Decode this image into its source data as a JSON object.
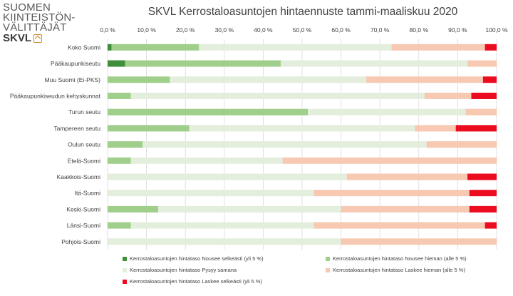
{
  "logo": {
    "line1": "SUOMEN",
    "line2": "KIINTEISTÖN-",
    "line3": "VÄLITTÄJÄT",
    "brand": "SKVL"
  },
  "colors": {
    "nousee_selkeasti": "#3f8f3a",
    "nousee_hieman": "#9fcf8a",
    "pysyy_samana": "#e4eedc",
    "laskee_hieman": "#f7c9b2",
    "laskee_selkeasti": "#ec0c20",
    "gridline": "#d9d9d9"
  },
  "chart_data": {
    "type": "bar",
    "orientation": "horizontal",
    "stacked": "percent",
    "title": "SKVL Kerrostaloasuntojen hintaennuste tammi-maaliskuu 2020",
    "xlim": [
      0,
      100
    ],
    "x_ticks": [
      "0,0 %",
      "10,0 %",
      "20,0 %",
      "30,0 %",
      "40,0 %",
      "50,0 %",
      "60,0 %",
      "70,0 %",
      "80,0 %",
      "90,0 %",
      "100,0 %"
    ],
    "x_tick_values": [
      0,
      10,
      20,
      30,
      40,
      50,
      60,
      70,
      80,
      90,
      100
    ],
    "grid": true,
    "legend_position": "bottom",
    "categories": [
      "Koko Suomi",
      "Pääkaupunkiseutu",
      "Muu Suomi (Ei-PKS)",
      "Pääkaupunkiseudun kehyskunnat",
      "Turun seutu",
      "Tampereen seutu",
      "Oulun seutu",
      "Etelä-Suomi",
      "Kaakkois-Suomi",
      "Itä-Suomi",
      "Keski-Suomi",
      "Länsi-Suomi",
      "Pohjois-Suomi"
    ],
    "series": [
      {
        "name": "Kerrostaloasuntojen hintataso Nousee selkeästi (yli 5 %)",
        "color_key": "nousee_selkeasti",
        "values": [
          1,
          4.5,
          0,
          0,
          0,
          0,
          0,
          0,
          0,
          0,
          0,
          0,
          0
        ]
      },
      {
        "name": "Kerrostaloasuntojen hintataso Nousee hieman (alle 5 %)",
        "color_key": "nousee_hieman",
        "values": [
          22.5,
          40,
          16,
          6,
          51.5,
          21,
          9,
          6,
          0,
          0,
          13,
          6,
          0
        ]
      },
      {
        "name": "Kerrostaloasuntojen hintataso Pysyy samana",
        "color_key": "pysyy_samana",
        "values": [
          49.5,
          48,
          50.5,
          75.5,
          40.5,
          58,
          73,
          39,
          61.5,
          53,
          47,
          47,
          60
        ]
      },
      {
        "name": "Kerrostaloasuntojen hintataso Laskee hieman (alle 5 %)",
        "color_key": "laskee_hieman",
        "values": [
          24,
          7.5,
          30,
          12,
          8,
          10.5,
          18,
          55,
          31,
          40,
          33,
          44,
          40
        ]
      },
      {
        "name": "Kerrostaloasuntojen hintataso Laskee selkeästi (yli 5 %)",
        "color_key": "laskee_selkeasti",
        "values": [
          3,
          0,
          3.5,
          6.5,
          0,
          10.5,
          0,
          0,
          7.5,
          7,
          7,
          3,
          0
        ]
      }
    ]
  }
}
